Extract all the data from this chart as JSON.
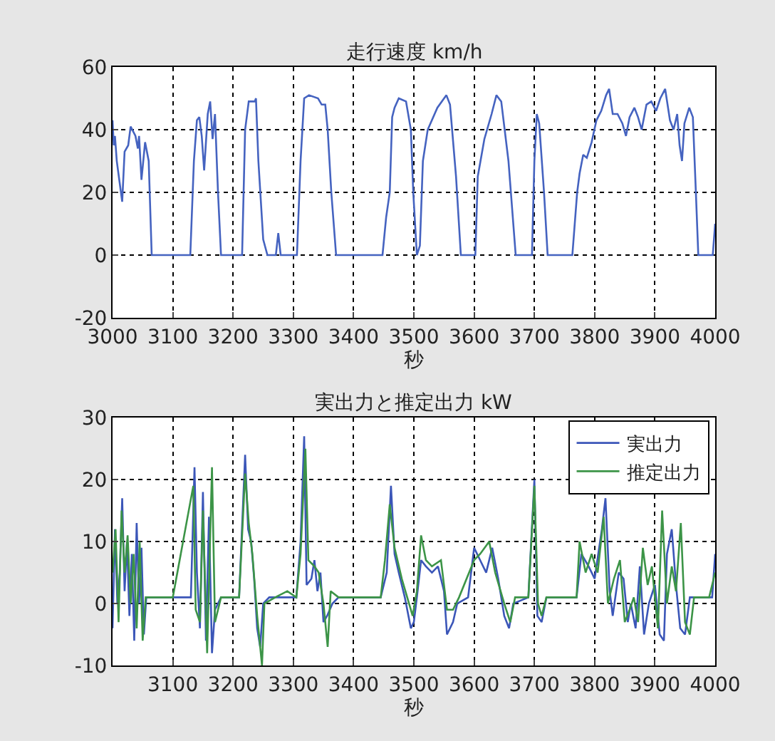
{
  "chart_data": [
    {
      "type": "line",
      "title": "走行速度 km/h",
      "xlabel": "秒",
      "xlim": [
        3000,
        4000
      ],
      "xticks": [
        3000,
        3100,
        3200,
        3300,
        3400,
        3500,
        3600,
        3700,
        3800,
        3900,
        4000
      ],
      "ylim": [
        -20,
        60
      ],
      "yticks": [
        -20,
        0,
        20,
        40,
        60
      ],
      "grid": true,
      "legend": false,
      "series": [
        {
          "color": "#4563c0",
          "x": [
            3000,
            3002,
            3004,
            3007,
            3016,
            3020,
            3026,
            3030,
            3038,
            3042,
            3044,
            3048,
            3054,
            3060,
            3065,
            3129,
            3135,
            3140,
            3144,
            3148,
            3152,
            3158,
            3162,
            3166,
            3170,
            3175,
            3180,
            3215,
            3220,
            3226,
            3236,
            3238,
            3242,
            3250,
            3257,
            3271,
            3275,
            3279,
            3306,
            3312,
            3318,
            3326,
            3341,
            3347,
            3353,
            3357,
            3363,
            3371,
            3448,
            3454,
            3460,
            3464,
            3468,
            3475,
            3487,
            3495,
            3499,
            3505,
            3510,
            3515,
            3523,
            3539,
            3554,
            3560,
            3570,
            3578,
            3602,
            3606,
            3617,
            3629,
            3637,
            3645,
            3657,
            3669,
            3696,
            3700,
            3704,
            3708,
            3716,
            3722,
            3763,
            3771,
            3775,
            3781,
            3787,
            3795,
            3803,
            3811,
            3819,
            3824,
            3830,
            3838,
            3846,
            3852,
            3858,
            3866,
            3872,
            3878,
            3886,
            3894,
            3902,
            3909,
            3917,
            3925,
            3931,
            3937,
            3941,
            3945,
            3949,
            3957,
            3963,
            3968,
            3972,
            3996,
            4000
          ],
          "values": [
            43,
            35,
            38,
            30,
            17,
            33,
            35,
            41,
            38,
            34,
            38,
            24,
            36,
            30,
            0,
            0,
            30,
            43,
            44,
            38,
            27,
            45,
            49,
            37,
            45,
            20,
            0,
            0,
            40,
            49,
            49,
            50,
            30,
            5,
            0,
            0,
            7,
            0,
            0,
            30,
            50,
            51,
            50,
            48,
            48,
            40,
            20,
            0,
            0,
            12,
            20,
            44,
            47,
            50,
            49,
            40,
            20,
            0,
            3,
            30,
            40,
            47,
            51,
            48,
            25,
            0,
            0,
            25,
            37,
            45,
            51,
            49,
            30,
            0,
            0,
            30,
            45,
            42,
            20,
            0,
            0,
            20,
            26,
            32,
            31,
            36,
            43,
            46,
            51,
            53,
            45,
            45,
            42,
            38,
            44,
            47,
            44,
            40,
            48,
            49,
            46,
            50,
            53,
            43,
            40,
            45,
            35,
            30,
            42,
            47,
            44,
            20,
            0,
            0,
            10
          ]
        }
      ]
    },
    {
      "type": "line",
      "title": "実出力と推定出力 kW",
      "xlabel": "秒",
      "xlim": [
        3000,
        4000
      ],
      "xticks": [
        3100,
        3200,
        3300,
        3400,
        3500,
        3600,
        3700,
        3800,
        3900,
        4000
      ],
      "ylim": [
        -10,
        30
      ],
      "yticks": [
        -10,
        0,
        10,
        20,
        30
      ],
      "grid": true,
      "legend": "top right",
      "series": [
        {
          "name": "実出力",
          "color": "#3b56b8",
          "x": [
            3000,
            3004,
            3008,
            3012,
            3016,
            3020,
            3024,
            3028,
            3032,
            3036,
            3040,
            3044,
            3048,
            3052,
            3056,
            3065,
            3100,
            3130,
            3136,
            3140,
            3145,
            3150,
            3155,
            3160,
            3165,
            3170,
            3180,
            3210,
            3220,
            3225,
            3230,
            3235,
            3240,
            3245,
            3250,
            3260,
            3305,
            3312,
            3318,
            3322,
            3330,
            3335,
            3340,
            3345,
            3350,
            3356,
            3365,
            3375,
            3445,
            3455,
            3462,
            3468,
            3475,
            3485,
            3495,
            3500,
            3505,
            3512,
            3520,
            3530,
            3540,
            3550,
            3555,
            3565,
            3572,
            3590,
            3600,
            3610,
            3620,
            3630,
            3640,
            3650,
            3658,
            3665,
            3690,
            3700,
            3705,
            3712,
            3720,
            3770,
            3778,
            3790,
            3800,
            3812,
            3818,
            3825,
            3830,
            3840,
            3848,
            3855,
            3860,
            3868,
            3875,
            3882,
            3890,
            3900,
            3908,
            3915,
            3920,
            3928,
            3935,
            3942,
            3950,
            3958,
            3970,
            3995,
            4000
          ],
          "values": [
            -4,
            12,
            0,
            5,
            17,
            2,
            10,
            -2,
            8,
            -6,
            13,
            0,
            9,
            -5,
            1,
            1,
            1,
            1,
            22,
            5,
            -4,
            18,
            -6,
            14,
            -8,
            -1,
            1,
            1,
            24,
            12,
            10,
            4,
            -4,
            -7,
            0,
            1,
            1,
            10,
            27,
            3,
            4,
            7,
            2,
            5,
            -3,
            -2,
            0,
            1,
            1,
            5,
            19,
            8,
            5,
            1,
            -4,
            -3,
            1,
            7,
            6,
            5,
            6,
            2,
            -5,
            -3,
            0,
            1,
            9,
            7,
            5,
            9,
            4,
            -2,
            -4,
            0,
            1,
            20,
            -2,
            -3,
            1,
            1,
            8,
            6,
            4,
            12,
            17,
            2,
            -2,
            5,
            4,
            -3,
            0,
            -4,
            6,
            -5,
            0,
            3,
            -5,
            -6,
            8,
            12,
            3,
            -4,
            -5,
            1,
            1,
            1,
            8
          ]
        },
        {
          "name": "推定出力",
          "color": "#3c9447",
          "x": [
            3000,
            3005,
            3010,
            3015,
            3020,
            3025,
            3030,
            3035,
            3040,
            3045,
            3050,
            3055,
            3100,
            3134,
            3138,
            3145,
            3150,
            3157,
            3165,
            3170,
            3180,
            3210,
            3220,
            3226,
            3232,
            3240,
            3248,
            3252,
            3270,
            3290,
            3305,
            3312,
            3320,
            3325,
            3335,
            3342,
            3350,
            3357,
            3362,
            3375,
            3445,
            3452,
            3460,
            3468,
            3480,
            3492,
            3498,
            3505,
            3512,
            3520,
            3530,
            3545,
            3555,
            3565,
            3575,
            3600,
            3610,
            3625,
            3635,
            3650,
            3660,
            3668,
            3690,
            3700,
            3706,
            3712,
            3720,
            3770,
            3775,
            3785,
            3795,
            3805,
            3815,
            3822,
            3832,
            3842,
            3850,
            3858,
            3865,
            3872,
            3880,
            3888,
            3895,
            3905,
            3912,
            3920,
            3928,
            3935,
            3943,
            3950,
            3958,
            3965,
            3990,
            4000
          ],
          "values": [
            5,
            12,
            -3,
            15,
            5,
            11,
            0,
            8,
            -4,
            10,
            -6,
            1,
            1,
            19,
            -1,
            -3,
            15,
            -8,
            22,
            -3,
            1,
            1,
            21,
            13,
            8,
            -2,
            -10,
            0,
            1,
            2,
            1,
            8,
            25,
            7,
            6,
            5,
            0,
            -7,
            2,
            1,
            1,
            7,
            16,
            9,
            4,
            0,
            -2,
            2,
            11,
            7,
            6,
            7,
            -1,
            -1,
            1,
            7,
            8,
            10,
            5,
            0,
            -3,
            1,
            1,
            19,
            0,
            -2,
            1,
            1,
            10,
            5,
            8,
            5,
            14,
            0,
            4,
            7,
            -3,
            -1,
            1,
            -3,
            9,
            3,
            6,
            -4,
            15,
            0,
            6,
            2,
            13,
            -3,
            -5,
            1,
            1,
            5
          ]
        }
      ]
    }
  ]
}
